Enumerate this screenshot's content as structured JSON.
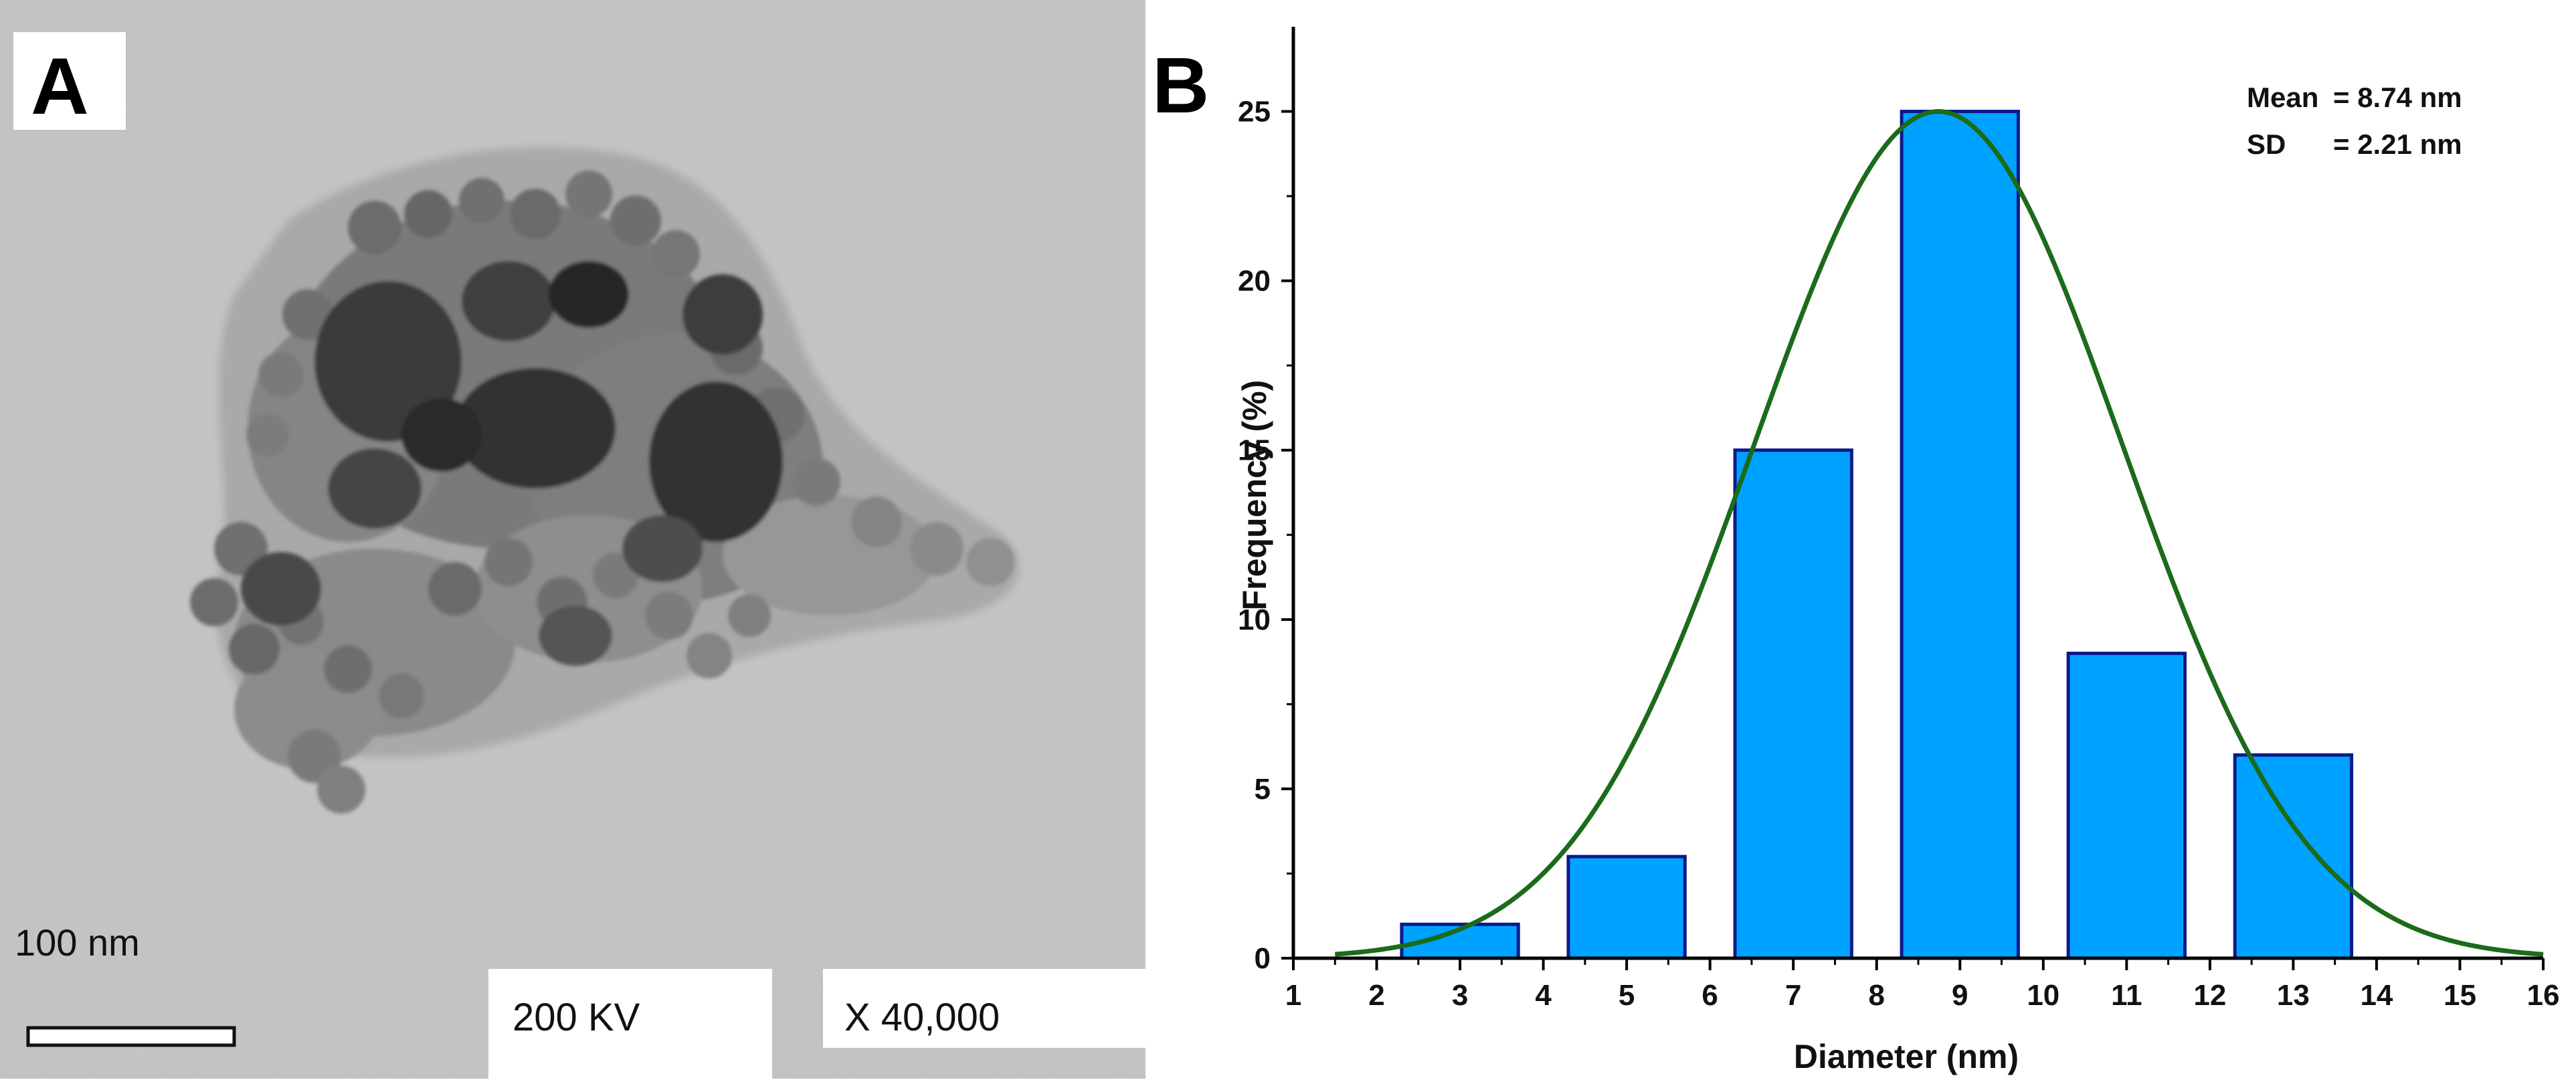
{
  "panel_a": {
    "letter": "A",
    "scale_label": "100 nm",
    "voltage_label": "200 KV",
    "magnification_label": "X 40,000"
  },
  "panel_b": {
    "letter": "B",
    "stats": {
      "mean_label": "Mean",
      "mean_value": "= 8.74 nm",
      "sd_label": "SD",
      "sd_value": "= 2.21 nm"
    }
  },
  "colors": {
    "bar_fill": "#00a2ff",
    "bar_stroke": "#0b1a8c",
    "fit_curve": "#1b6b1b",
    "axis": "#000000",
    "tem_background": "#c6c6c6",
    "particle_dark": "#3c3c3c"
  },
  "chart_data": {
    "type": "bar",
    "xlabel": "Diameter (nm)",
    "ylabel": "Frequency (%)",
    "xlim": [
      1,
      16
    ],
    "ylim": [
      0,
      27.5
    ],
    "xticks": [
      1,
      2,
      3,
      4,
      5,
      6,
      7,
      8,
      9,
      10,
      11,
      12,
      13,
      14,
      15,
      16
    ],
    "yticks": [
      0,
      5,
      10,
      15,
      20,
      25
    ],
    "bar_width": 1.4,
    "categories": [
      3,
      5,
      7,
      9,
      11,
      13
    ],
    "values": [
      1,
      3,
      15,
      25,
      9,
      6
    ],
    "fit": {
      "type": "gaussian",
      "mean": 8.74,
      "sd": 2.21,
      "peak": 25,
      "x_start": 1.5,
      "x_end": 16
    },
    "grid": false,
    "legend": "none"
  }
}
